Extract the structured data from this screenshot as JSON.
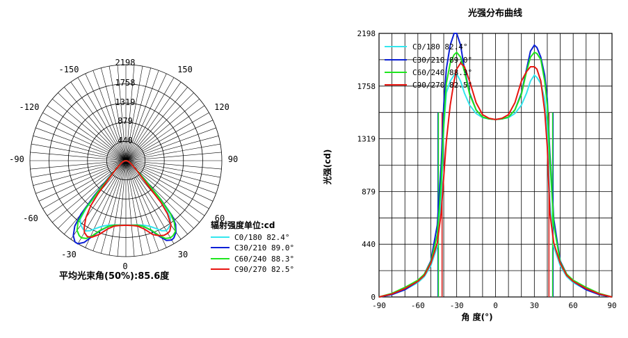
{
  "colors": {
    "c0_180": "#33e6ee",
    "c30_210": "#0a1fd6",
    "c60_240": "#1ee61e",
    "c90_270": "#e8140f",
    "grid": "#000000"
  },
  "polar": {
    "radial_ticks": [
      "440",
      "879",
      "1319",
      "1758",
      "2198"
    ],
    "angle_labels": [
      "-150",
      "150",
      "-120",
      "120",
      "-90",
      "90",
      "-60",
      "60",
      "-30",
      "30",
      "0"
    ],
    "unit_label": "辐射强度单位:cd",
    "beam_angle_label": "平均光束角(50%):85.6度"
  },
  "legend": [
    {
      "label": "C0/180 82.4°",
      "color_key": "c0_180"
    },
    {
      "label": "C30/210 89.0°",
      "color_key": "c30_210"
    },
    {
      "label": "C60/240 88.3°",
      "color_key": "c60_240"
    },
    {
      "label": "C90/270 82.5°",
      "color_key": "c90_270"
    }
  ],
  "chart_data": [
    {
      "type": "polar-line",
      "title": "",
      "rmax": 2198,
      "angle_unit": "degrees",
      "series": [
        {
          "name": "C0/180 82.4°",
          "theta": [
            -90,
            -80,
            -70,
            -60,
            -55,
            -50,
            -45,
            -42,
            -40,
            -38,
            -35,
            -32,
            -30,
            -27,
            -24,
            -20,
            -15,
            -10,
            -5,
            0,
            5,
            10,
            15,
            20,
            24,
            27,
            30,
            32,
            35,
            38,
            40,
            42,
            45,
            50,
            55,
            60,
            70,
            80,
            90
          ],
          "r": [
            0,
            20,
            60,
            120,
            170,
            260,
            420,
            800,
            1400,
            1700,
            1800,
            1850,
            1860,
            1800,
            1700,
            1600,
            1530,
            1495,
            1485,
            1480,
            1485,
            1495,
            1530,
            1600,
            1700,
            1800,
            1850,
            1830,
            1780,
            1650,
            1400,
            800,
            420,
            260,
            170,
            120,
            60,
            20,
            0
          ]
        },
        {
          "name": "C30/210 89.0°",
          "theta": [
            -90,
            -80,
            -70,
            -60,
            -55,
            -50,
            -45,
            -42,
            -40,
            -38,
            -35,
            -32,
            -30,
            -27,
            -24,
            -20,
            -15,
            -10,
            -5,
            0,
            5,
            10,
            15,
            20,
            24,
            27,
            30,
            32,
            35,
            38,
            40,
            42,
            45,
            50,
            55,
            60,
            70,
            80,
            90
          ],
          "r": [
            0,
            20,
            60,
            130,
            190,
            300,
            600,
            1100,
            1600,
            1900,
            2100,
            2198,
            2198,
            2100,
            1900,
            1700,
            1560,
            1500,
            1485,
            1480,
            1485,
            1500,
            1560,
            1700,
            1900,
            2050,
            2100,
            2080,
            2000,
            1850,
            1650,
            1200,
            650,
            300,
            190,
            130,
            60,
            20,
            0
          ]
        },
        {
          "name": "C60/240 88.3°",
          "theta": [
            -90,
            -80,
            -70,
            -60,
            -55,
            -50,
            -45,
            -42,
            -40,
            -38,
            -35,
            -32,
            -30,
            -27,
            -24,
            -20,
            -15,
            -10,
            -5,
            0,
            5,
            10,
            15,
            20,
            24,
            27,
            30,
            32,
            35,
            38,
            40,
            42,
            45,
            50,
            55,
            60,
            70,
            80,
            90
          ],
          "r": [
            0,
            30,
            80,
            140,
            190,
            290,
            520,
            950,
            1450,
            1780,
            1950,
            2020,
            2040,
            2000,
            1880,
            1690,
            1560,
            1500,
            1485,
            1480,
            1485,
            1500,
            1560,
            1690,
            1880,
            2000,
            2040,
            2030,
            1980,
            1800,
            1600,
            1150,
            600,
            290,
            190,
            140,
            80,
            30,
            0
          ]
        },
        {
          "name": "C90/270 82.5°",
          "theta": [
            -90,
            -80,
            -70,
            -60,
            -55,
            -50,
            -45,
            -42,
            -40,
            -38,
            -35,
            -32,
            -30,
            -27,
            -24,
            -20,
            -15,
            -10,
            -5,
            0,
            5,
            10,
            15,
            20,
            24,
            27,
            30,
            32,
            35,
            38,
            40,
            42,
            45,
            50,
            55,
            60,
            70,
            80,
            90
          ],
          "r": [
            0,
            25,
            70,
            130,
            180,
            280,
            450,
            700,
            1000,
            1300,
            1600,
            1800,
            1900,
            1950,
            1920,
            1800,
            1620,
            1520,
            1490,
            1480,
            1490,
            1520,
            1620,
            1800,
            1880,
            1920,
            1920,
            1900,
            1800,
            1550,
            1250,
            700,
            450,
            280,
            180,
            130,
            70,
            25,
            0
          ]
        }
      ]
    },
    {
      "type": "line",
      "title": "光强分布曲线",
      "xlabel": "角 度(°)",
      "ylabel": "光强(cd)",
      "xlim": [
        -90,
        90
      ],
      "ylim": [
        0,
        2198
      ],
      "xticks": [
        -90,
        -60,
        -30,
        0,
        30,
        60,
        90
      ],
      "yticks": [
        0,
        440,
        879,
        1319,
        1758,
        2198
      ],
      "grid": true,
      "legend_position": "top-left",
      "beam_edges": [
        {
          "name": "C0/180 82.4°",
          "x": [
            -41.2,
            41.2
          ]
        },
        {
          "name": "C30/210 89.0°",
          "x": [
            -44.5,
            44.5
          ]
        },
        {
          "name": "C60/240 88.3°",
          "x": [
            -44.1,
            44.1
          ]
        },
        {
          "name": "C90/270 82.5°",
          "x": [
            -41.3,
            41.3
          ]
        }
      ],
      "series": [
        {
          "name": "C0/180 82.4°",
          "x": [
            -90,
            -80,
            -70,
            -60,
            -55,
            -50,
            -45,
            -42,
            -40,
            -38,
            -35,
            -32,
            -30,
            -27,
            -24,
            -20,
            -15,
            -10,
            -5,
            0,
            5,
            10,
            15,
            20,
            24,
            27,
            30,
            32,
            35,
            38,
            40,
            42,
            45,
            50,
            55,
            60,
            70,
            80,
            90
          ],
          "y": [
            0,
            20,
            60,
            120,
            170,
            260,
            420,
            800,
            1400,
            1700,
            1800,
            1850,
            1860,
            1800,
            1700,
            1600,
            1530,
            1495,
            1485,
            1480,
            1485,
            1495,
            1530,
            1600,
            1700,
            1800,
            1850,
            1830,
            1780,
            1650,
            1400,
            800,
            420,
            260,
            170,
            120,
            60,
            20,
            0
          ]
        },
        {
          "name": "C30/210 89.0°",
          "x": [
            -90,
            -80,
            -70,
            -60,
            -55,
            -50,
            -45,
            -42,
            -40,
            -38,
            -35,
            -32,
            -30,
            -27,
            -24,
            -20,
            -15,
            -10,
            -5,
            0,
            5,
            10,
            15,
            20,
            24,
            27,
            30,
            32,
            35,
            38,
            40,
            42,
            45,
            50,
            55,
            60,
            70,
            80,
            90
          ],
          "y": [
            0,
            20,
            60,
            130,
            190,
            300,
            600,
            1100,
            1600,
            1900,
            2100,
            2198,
            2198,
            2100,
            1900,
            1700,
            1560,
            1500,
            1485,
            1480,
            1485,
            1500,
            1560,
            1700,
            1900,
            2050,
            2100,
            2080,
            2000,
            1850,
            1650,
            1200,
            650,
            300,
            190,
            130,
            60,
            20,
            0
          ]
        },
        {
          "name": "C60/240 88.3°",
          "x": [
            -90,
            -80,
            -70,
            -60,
            -55,
            -50,
            -45,
            -42,
            -40,
            -38,
            -35,
            -32,
            -30,
            -27,
            -24,
            -20,
            -15,
            -10,
            -5,
            0,
            5,
            10,
            15,
            20,
            24,
            27,
            30,
            32,
            35,
            38,
            40,
            42,
            45,
            50,
            55,
            60,
            70,
            80,
            90
          ],
          "y": [
            0,
            30,
            80,
            140,
            190,
            290,
            520,
            950,
            1450,
            1780,
            1950,
            2020,
            2040,
            2000,
            1880,
            1690,
            1560,
            1500,
            1485,
            1480,
            1485,
            1500,
            1560,
            1690,
            1880,
            2000,
            2040,
            2030,
            1980,
            1800,
            1600,
            1150,
            600,
            290,
            190,
            140,
            80,
            30,
            0
          ]
        },
        {
          "name": "C90/270 82.5°",
          "x": [
            -90,
            -80,
            -70,
            -60,
            -55,
            -50,
            -45,
            -42,
            -40,
            -38,
            -35,
            -32,
            -30,
            -27,
            -24,
            -20,
            -15,
            -10,
            -5,
            0,
            5,
            10,
            15,
            20,
            24,
            27,
            30,
            32,
            35,
            38,
            40,
            42,
            45,
            50,
            55,
            60,
            70,
            80,
            90
          ],
          "y": [
            0,
            25,
            70,
            130,
            180,
            280,
            450,
            700,
            1000,
            1300,
            1600,
            1800,
            1900,
            1950,
            1920,
            1800,
            1620,
            1520,
            1490,
            1480,
            1490,
            1520,
            1620,
            1800,
            1880,
            1920,
            1920,
            1900,
            1800,
            1550,
            1250,
            700,
            450,
            280,
            180,
            130,
            70,
            25,
            0
          ]
        }
      ]
    }
  ]
}
